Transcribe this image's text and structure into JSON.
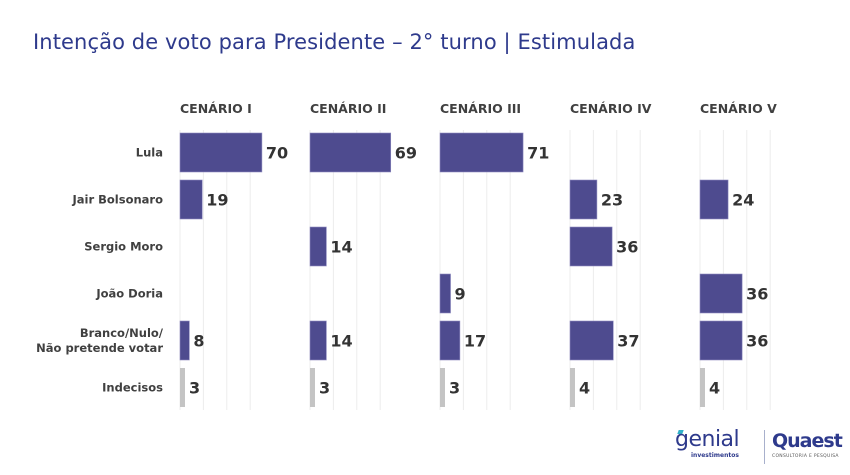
{
  "title": "Intenção de voto para Presidente – 2° turno | Estimulada",
  "colors": {
    "title": "#2e3a8c",
    "bar_candidate": "#4e4b8f",
    "bar_undecided": "#c4c4c4",
    "gridline": "#ececec",
    "label_text": "#404040"
  },
  "chart_data": {
    "type": "bar",
    "orientation": "horizontal",
    "title": "Intenção de voto para Presidente – 2° turno | Estimulada",
    "categories": [
      "Lula",
      "Jair Bolsonaro",
      "Sergio Moro",
      "João Doria",
      "Branco/Nulo/\nNão pretende votar",
      "Indecisos"
    ],
    "category_lines": [
      [
        "Lula"
      ],
      [
        "Jair Bolsonaro"
      ],
      [
        "Sergio Moro"
      ],
      [
        "João Doria"
      ],
      [
        "Branco/Nulo/",
        "Não pretende votar"
      ],
      [
        "Indecisos"
      ]
    ],
    "series": [
      {
        "name": "CENÁRIO I",
        "values": [
          70,
          19,
          null,
          null,
          8,
          3
        ]
      },
      {
        "name": "CENÁRIO II",
        "values": [
          69,
          null,
          14,
          null,
          14,
          3
        ]
      },
      {
        "name": "CENÁRIO III",
        "values": [
          71,
          null,
          null,
          9,
          17,
          3
        ]
      },
      {
        "name": "CENÁRIO IV",
        "values": [
          null,
          23,
          36,
          null,
          37,
          4
        ]
      },
      {
        "name": "CENÁRIO V",
        "values": [
          null,
          24,
          null,
          36,
          36,
          4
        ]
      }
    ],
    "xlim": [
      0,
      100
    ],
    "grid": true,
    "gridline_step": 20,
    "data_labels": true,
    "xlabel": "",
    "ylabel": ""
  },
  "logos": {
    "genial": {
      "name": "genial",
      "subtitle": "investimentos"
    },
    "quaest": {
      "name": "Quaest",
      "subtitle": "CONSULTORIA E PESQUISA"
    }
  }
}
